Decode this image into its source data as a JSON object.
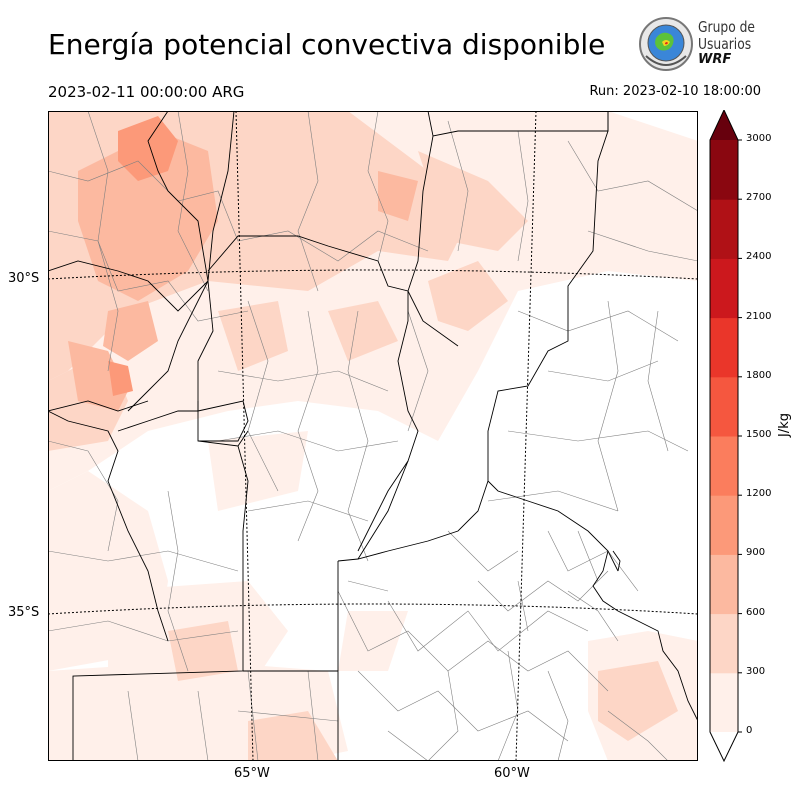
{
  "title": "Energía potencial convectiva disponible",
  "valid_time": "2023-02-11 00:00:00 ARG",
  "run_time": "Run: 2023-02-10 18:00:00",
  "logo": {
    "line1": "Grupo de",
    "line2": "Usuarios",
    "line3": "WRF",
    "icon": "wrf-globe-logo-icon"
  },
  "latitude_labels": [
    "30°S",
    "35°S"
  ],
  "longitude_labels": [
    "65°W",
    "60°W"
  ],
  "colorbar": {
    "units": "J/kg",
    "ticks": [
      "0",
      "300",
      "600",
      "900",
      "1200",
      "1500",
      "1800",
      "2100",
      "2400",
      "2700",
      "3000"
    ],
    "colors": [
      "#fff0ea",
      "#fdd6c6",
      "#fcb9a0",
      "#fc9979",
      "#fb7d5d",
      "#f5573f",
      "#ea362a",
      "#cc181d",
      "#b01116",
      "#8a0710",
      "#67000d"
    ],
    "extend": "max"
  },
  "colors": {
    "cape_low": "#fff0ea",
    "cape_mid": "#fdd6c6",
    "cape_high": "#fcb9a0",
    "cape_peak": "#fc9979",
    "borders": "#000000",
    "departments": "#808080"
  }
}
